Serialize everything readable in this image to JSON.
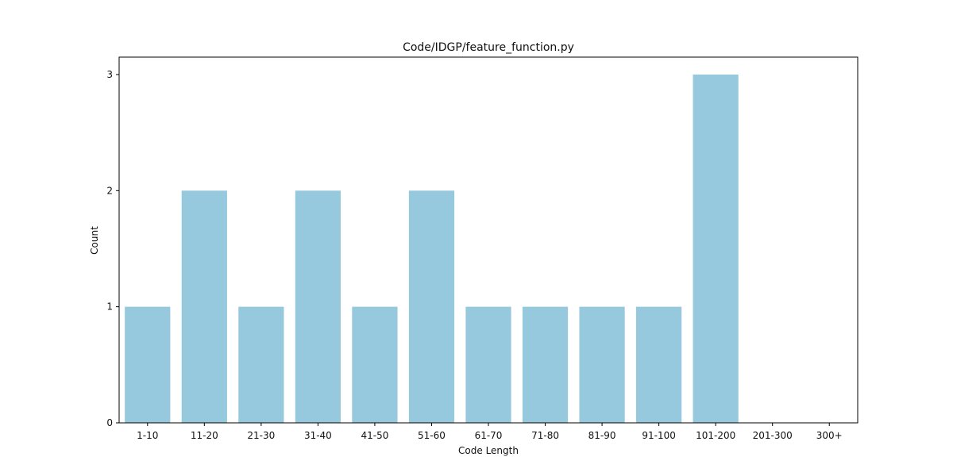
{
  "chart_data": {
    "type": "bar",
    "title": "Code/IDGP/feature_function.py",
    "xlabel": "Code Length",
    "ylabel": "Count",
    "categories": [
      "1-10",
      "11-20",
      "21-30",
      "31-40",
      "41-50",
      "51-60",
      "61-70",
      "71-80",
      "81-90",
      "91-100",
      "101-200",
      "201-300",
      "300+"
    ],
    "values": [
      1,
      2,
      1,
      2,
      1,
      2,
      1,
      1,
      1,
      1,
      3,
      0,
      0
    ],
    "ylim": [
      0,
      3.15
    ],
    "yticks": [
      0,
      1,
      2,
      3
    ],
    "bar_color": "#96c9dd",
    "grid": false,
    "legend": "none"
  }
}
